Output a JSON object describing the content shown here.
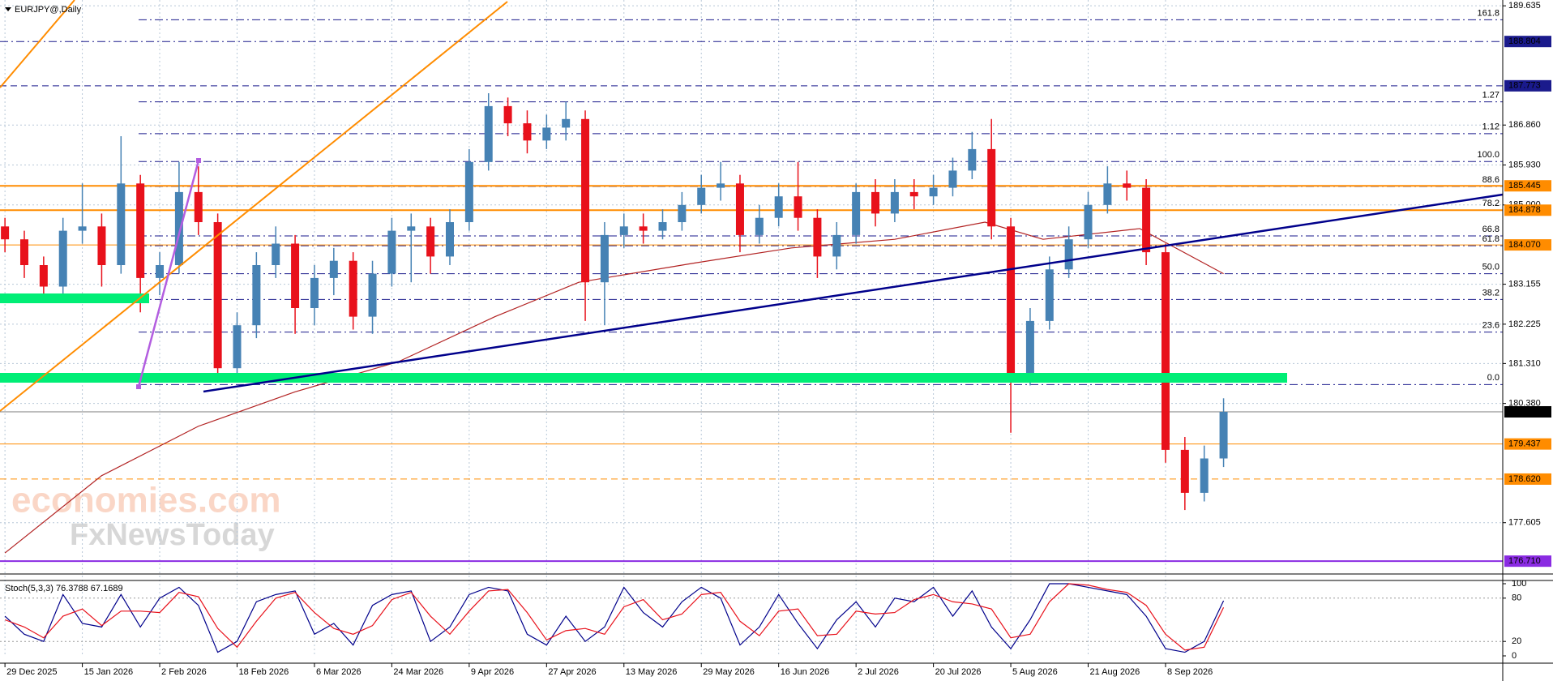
{
  "chart_data": {
    "type": "candlestick",
    "title": "EURJPY@,Daily",
    "xlim": [
      -0.77,
      232.3
    ],
    "ylim": [
      176.43,
      189.77
    ],
    "grid": true,
    "xticks": [
      {
        "value": 0,
        "label": "29 Dec 2025"
      },
      {
        "value": 12,
        "label": "15 Jan 2026"
      },
      {
        "value": 24,
        "label": "2 Feb 2026"
      },
      {
        "value": 36,
        "label": "18 Feb 2026"
      },
      {
        "value": 48,
        "label": "6 Mar 2026"
      },
      {
        "value": 60,
        "label": "24 Mar 2026"
      },
      {
        "value": 72,
        "label": "9 Apr 2026"
      },
      {
        "value": 84,
        "label": "27 Apr 2026"
      },
      {
        "value": 96,
        "label": "13 May 2026"
      },
      {
        "value": 108,
        "label": "29 May 2026"
      },
      {
        "value": 120,
        "label": "16 Jun 2026"
      },
      {
        "value": 132,
        "label": "2 Jul 2026"
      },
      {
        "value": 144,
        "label": "20 Jul 2026"
      },
      {
        "value": 156,
        "label": "5 Aug 2026"
      },
      {
        "value": 168,
        "label": "21 Aug 2026"
      },
      {
        "value": 180,
        "label": "8 Sep 2026"
      }
    ],
    "yticks": [
      189.635,
      {
        "value": 186.86,
        "label": "186.860"
      },
      {
        "value": 185.93,
        "label": "185.930"
      },
      {
        "value": 185,
        "label": "185.000"
      },
      183.155,
      182.225,
      {
        "value": 181.31,
        "label": "181.310"
      },
      {
        "value": 180.38,
        "label": "180.380"
      },
      177.605
    ],
    "candles": {
      "up_color": "#4682b4",
      "down_color": "#e8111b",
      "x": [
        0,
        3,
        6,
        9,
        12,
        15,
        18,
        21,
        24,
        27,
        30,
        33,
        36,
        39,
        42,
        45,
        48,
        51,
        54,
        57,
        60,
        63,
        66,
        69,
        72,
        75,
        78,
        81,
        84,
        87,
        90,
        93,
        96,
        99,
        102,
        105,
        108,
        111,
        114,
        117,
        120,
        123,
        126,
        129,
        132,
        135,
        138,
        141,
        144,
        147,
        150,
        153,
        156,
        159,
        162,
        165,
        168,
        171,
        174,
        177,
        180,
        183,
        186,
        189
      ],
      "open": [
        184.5,
        184.2,
        183.6,
        183.1,
        184.4,
        184.5,
        183.6,
        185.5,
        183.3,
        183.6,
        185.3,
        184.6,
        181.2,
        182.2,
        183.6,
        184.1,
        182.6,
        183.3,
        183.7,
        182.4,
        183.4,
        184.4,
        184.5,
        183.8,
        184.6,
        186.0,
        187.3,
        186.9,
        186.5,
        186.8,
        187.0,
        183.2,
        184.3,
        184.5,
        184.4,
        184.6,
        185.0,
        185.4,
        185.5,
        184.3,
        184.7,
        185.2,
        184.7,
        183.8,
        184.3,
        185.3,
        184.8,
        185.3,
        185.2,
        185.4,
        185.8,
        186.3,
        184.5,
        181.0,
        182.3,
        183.5,
        184.2,
        185.0,
        185.5,
        185.4,
        183.9,
        179.3,
        178.3,
        179.1
      ],
      "high": [
        184.7,
        184.4,
        183.8,
        184.7,
        185.5,
        184.8,
        186.6,
        185.7,
        183.9,
        186.0,
        185.9,
        184.8,
        182.5,
        183.9,
        184.5,
        184.3,
        183.6,
        184.0,
        183.9,
        183.7,
        184.7,
        184.8,
        184.7,
        184.9,
        186.3,
        187.6,
        187.5,
        187.2,
        187.1,
        187.4,
        187.2,
        184.6,
        184.8,
        184.8,
        184.9,
        185.3,
        185.7,
        186.0,
        185.7,
        185.0,
        185.5,
        186.0,
        184.9,
        184.6,
        185.5,
        185.6,
        185.6,
        185.6,
        185.7,
        186.1,
        186.7,
        187.0,
        184.7,
        182.6,
        183.8,
        184.5,
        185.3,
        185.9,
        185.8,
        185.6,
        184.1,
        179.6,
        179.4,
        180.5
      ],
      "low": [
        183.9,
        183.3,
        182.8,
        182.9,
        184.1,
        183.1,
        183.4,
        182.5,
        182.9,
        183.4,
        184.3,
        180.9,
        180.9,
        181.9,
        183.3,
        182.0,
        182.2,
        182.9,
        182.1,
        182.0,
        183.1,
        183.2,
        183.4,
        183.6,
        184.4,
        185.8,
        186.6,
        186.2,
        186.3,
        186.5,
        182.3,
        182.2,
        184.0,
        184.1,
        184.2,
        184.4,
        184.8,
        185.1,
        183.9,
        184.1,
        184.5,
        184.4,
        183.3,
        183.5,
        184.1,
        184.5,
        184.6,
        184.9,
        185.0,
        185.2,
        185.6,
        184.2,
        179.7,
        180.8,
        182.1,
        183.3,
        184.0,
        184.8,
        185.1,
        183.6,
        179.0,
        177.9,
        178.1,
        178.9
      ],
      "close": [
        184.2,
        183.6,
        183.1,
        184.4,
        184.5,
        183.6,
        185.5,
        183.3,
        183.6,
        185.3,
        184.6,
        181.2,
        182.2,
        183.6,
        184.1,
        182.6,
        183.3,
        183.7,
        182.4,
        183.4,
        184.4,
        184.5,
        183.8,
        184.6,
        186.0,
        187.3,
        186.9,
        186.5,
        186.8,
        187.0,
        183.2,
        184.3,
        184.5,
        184.4,
        184.6,
        185.0,
        185.4,
        185.5,
        184.3,
        184.7,
        185.2,
        184.7,
        183.8,
        184.3,
        185.3,
        184.8,
        185.3,
        185.2,
        185.4,
        185.8,
        186.3,
        184.5,
        181.0,
        182.3,
        183.5,
        184.2,
        185.0,
        185.5,
        185.4,
        183.9,
        179.3,
        178.3,
        179.1,
        180.185
      ]
    },
    "moving_average": {
      "color": "#b22222",
      "x": [
        0,
        15,
        30,
        45,
        61,
        76,
        89,
        107,
        122,
        138,
        152,
        161,
        176,
        189
      ],
      "values": [
        176.9,
        178.7,
        179.85,
        180.65,
        181.35,
        182.4,
        183.2,
        183.65,
        184.0,
        184.2,
        184.6,
        184.2,
        184.45,
        183.4
      ]
    },
    "levels": [
      {
        "price": 188.804,
        "color": "#1a1a8c",
        "dash": "dashdot",
        "width": 1
      },
      {
        "price": 187.773,
        "color": "#1a1a8c",
        "dash": "dash",
        "width": 1
      },
      {
        "price": 185.445,
        "color": "#ff8c00",
        "dash": "solid",
        "width": 2
      },
      {
        "price": 184.878,
        "color": "#ff8c00",
        "dash": "solid",
        "width": 2
      },
      {
        "price": 184.07,
        "label": "184.070",
        "color": "#ff8c00",
        "dash": "solid",
        "width": 1
      },
      {
        "price": 180.185,
        "color": "#000000",
        "dash": "solid",
        "width": 0.5
      },
      {
        "price": 179.437,
        "color": "#ff8c00",
        "dash": "solid",
        "width": 1
      },
      {
        "price": 178.62,
        "label": "178.620",
        "color": "#ff8c00",
        "dash": "dash",
        "width": 1
      },
      {
        "price": 176.71,
        "label": "176.710",
        "color": "#8a2be2",
        "dash": "solid",
        "width": 2
      }
    ],
    "fib_color": "#1a1a8c",
    "fib_levels": [
      {
        "label": "161.8",
        "price": 189.31
      },
      {
        "label": "1.27",
        "price": 187.4
      },
      {
        "label": "1.12",
        "price": 186.66
      },
      {
        "label": "100.0",
        "price": 186.01
      },
      {
        "label": "88.6",
        "price": 185.43
      },
      {
        "label": "78.2",
        "price": 184.88
      },
      {
        "label": "66.8",
        "price": 184.28
      },
      {
        "label": "61.8",
        "price": 184.05
      },
      {
        "label": "50.0",
        "price": 183.4
      },
      {
        "label": "38.2",
        "price": 182.8
      },
      {
        "label": "23.6",
        "price": 182.04
      },
      {
        "label": "0.0",
        "price": 180.82
      }
    ],
    "watermark": [
      "economies.com",
      "FxNewsToday"
    ],
    "oscillator": {
      "title": "Stoch(5,3,3) 76.3788 67.1689",
      "ylim": [
        0,
        100
      ],
      "yticks": [
        100,
        80,
        20,
        0
      ],
      "x": [
        0,
        3,
        6,
        9,
        12,
        15,
        18,
        21,
        24,
        27,
        30,
        33,
        36,
        39,
        42,
        45,
        48,
        51,
        54,
        57,
        60,
        63,
        66,
        69,
        72,
        75,
        78,
        81,
        84,
        87,
        90,
        93,
        96,
        99,
        102,
        105,
        108,
        111,
        114,
        117,
        120,
        123,
        126,
        129,
        132,
        135,
        138,
        141,
        144,
        147,
        150,
        153,
        156,
        159,
        162,
        165,
        168,
        171,
        174,
        177,
        180,
        183,
        186,
        189
      ],
      "series": [
        {
          "color": "#00008b",
          "values": [
            55,
            30,
            20,
            85,
            45,
            40,
            85,
            40,
            80,
            95,
            70,
            5,
            20,
            75,
            85,
            90,
            30,
            45,
            15,
            70,
            85,
            90,
            20,
            40,
            85,
            95,
            90,
            30,
            15,
            55,
            20,
            40,
            95,
            60,
            40,
            75,
            95,
            80,
            15,
            40,
            85,
            45,
            10,
            50,
            75,
            40,
            80,
            75,
            95,
            55,
            90,
            40,
            10,
            50,
            100,
            100,
            95,
            90,
            85,
            55,
            10,
            5,
            20,
            76.3788
          ]
        },
        {
          "color": "#e8111b",
          "values": [
            50,
            40,
            25,
            55,
            65,
            42,
            62,
            62,
            60,
            88,
            82,
            38,
            12,
            48,
            80,
            88,
            60,
            38,
            30,
            42,
            78,
            88,
            55,
            30,
            62,
            90,
            92,
            60,
            22,
            35,
            38,
            30,
            68,
            78,
            50,
            58,
            85,
            88,
            48,
            28,
            62,
            65,
            28,
            30,
            62,
            58,
            60,
            78,
            85,
            75,
            72,
            65,
            25,
            30,
            75,
            100,
            98,
            92,
            88,
            70,
            30,
            8,
            12,
            67.1689
          ]
        }
      ]
    }
  }
}
